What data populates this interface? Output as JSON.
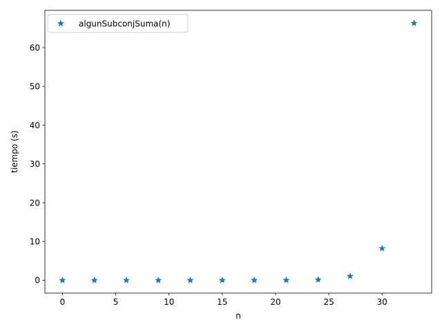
{
  "colors": {
    "series": "#1f77b4",
    "axes": "#000000",
    "background": "#ffffff",
    "legend_border": "#cccccc"
  },
  "chart_data": {
    "type": "scatter",
    "title": "",
    "xlabel": "n",
    "ylabel": "tiempo (s)",
    "xlim": [
      -1.65,
      34.65
    ],
    "ylim": [
      -3.3,
      69.6
    ],
    "xticks": [
      0,
      5,
      10,
      15,
      20,
      25,
      30
    ],
    "yticks": [
      0,
      10,
      20,
      30,
      40,
      50,
      60
    ],
    "grid": false,
    "legend_position": "upper-left",
    "marker": "star",
    "series": [
      {
        "name": "algunSubconjSuma(n)",
        "x": [
          0,
          3,
          6,
          9,
          12,
          15,
          18,
          21,
          24,
          27,
          30,
          33
        ],
        "y": [
          0.0,
          0.0,
          0.0,
          0.0,
          0.0,
          0.0,
          0.01,
          0.03,
          0.15,
          1.05,
          8.2,
          66.3
        ]
      }
    ]
  }
}
